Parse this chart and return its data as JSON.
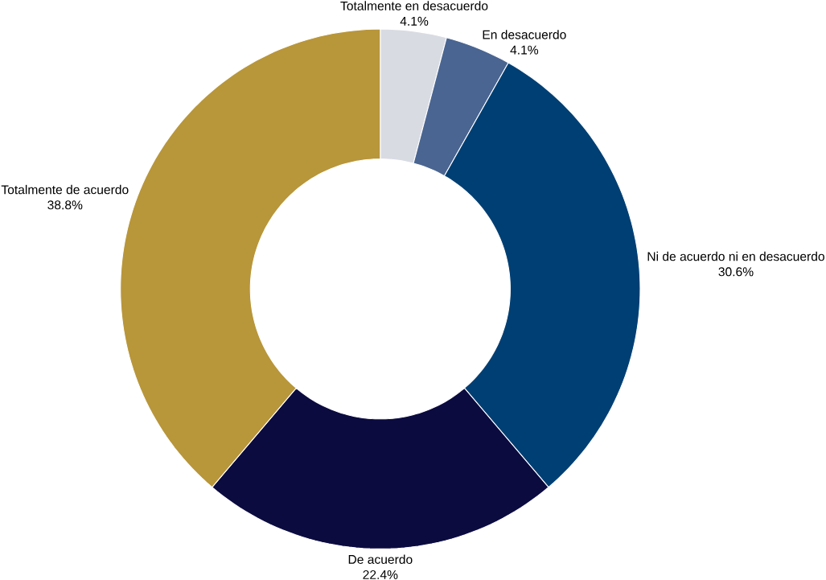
{
  "chart_data": {
    "type": "donut",
    "categories": [
      "Totalmente en desacuerdo",
      "En desacuerdo",
      "Ni de acuerdo ni en desacuerdo",
      "De acuerdo",
      "Totalmente de acuerdo"
    ],
    "values": [
      4.1,
      4.1,
      30.6,
      22.4,
      38.8
    ],
    "value_labels": [
      "4.1%",
      "4.1%",
      "30.6%",
      "22.4%",
      "38.8%"
    ],
    "colors": [
      "#d9dbe3",
      "#4a6591",
      "#003f73",
      "#0b0b40",
      "#b8963a"
    ]
  }
}
